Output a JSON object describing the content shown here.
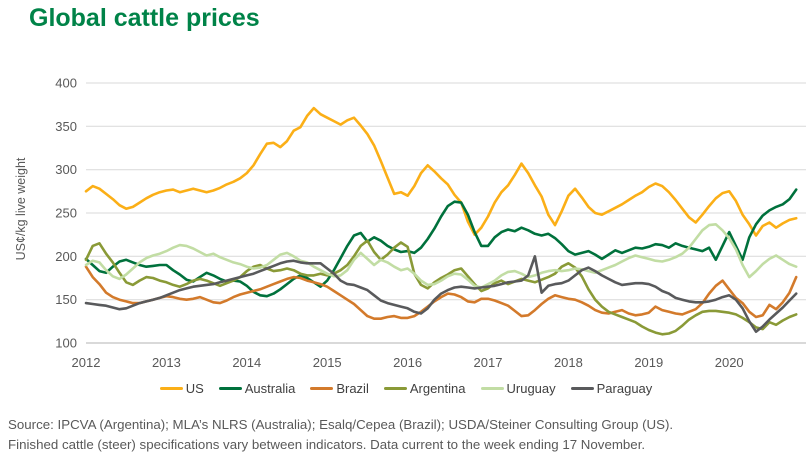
{
  "title": "Global cattle prices",
  "title_color": "#008348",
  "footer": {
    "line1": "Source: IPCVA (Argentina); MLA’s NLRS (Australia); Esalq/Cepea (Brazil); USDA/Steiner Consulting Group (US).",
    "line2": "Finished cattle (steer) specifications vary between indicators. Data current to the week ending 17 November."
  },
  "chart_data": {
    "type": "line",
    "title": "Global cattle prices",
    "xlabel": "",
    "ylabel": "US¢/kg live weight",
    "ylim": [
      100,
      400
    ],
    "yticks": [
      100,
      150,
      200,
      250,
      300,
      350,
      400
    ],
    "xticks": [
      "2012",
      "2013",
      "2014",
      "2015",
      "2016",
      "2017",
      "2018",
      "2019",
      "2020"
    ],
    "grid": "horizontal",
    "legend_position": "bottom",
    "x_start_year": 2012,
    "x_frequency": "monthly",
    "x_end": "2020-11",
    "gridline_color": "#d9d9d9",
    "axis_line_color": "#b3b3b3",
    "tick_label_color": "#595959",
    "series": [
      {
        "name": "US",
        "color": "#fbaf17",
        "values": [
          275,
          281,
          278,
          272,
          266,
          259,
          255,
          257,
          262,
          267,
          271,
          274,
          276,
          277,
          274,
          276,
          278,
          276,
          274,
          276,
          279,
          283,
          286,
          290,
          296,
          305,
          318,
          330,
          331,
          326,
          333,
          345,
          349,
          362,
          371,
          364,
          360,
          356,
          352,
          357,
          360,
          351,
          341,
          328,
          310,
          291,
          272,
          274,
          270,
          281,
          296,
          305,
          298,
          290,
          283,
          271,
          262,
          240,
          225,
          233,
          246,
          262,
          274,
          282,
          294,
          307,
          296,
          282,
          269,
          248,
          236,
          252,
          270,
          278,
          268,
          257,
          250,
          248,
          252,
          256,
          260,
          265,
          270,
          274,
          280,
          284,
          281,
          274,
          265,
          255,
          245,
          239,
          248,
          258,
          267,
          273,
          275,
          264,
          248,
          237,
          224,
          235,
          239,
          233,
          238,
          242,
          244
        ]
      },
      {
        "name": "Australia",
        "color": "#00713c",
        "values": [
          197,
          190,
          183,
          181,
          188,
          194,
          196,
          193,
          190,
          188,
          189,
          190,
          190,
          184,
          179,
          173,
          171,
          176,
          181,
          178,
          174,
          171,
          172,
          171,
          166,
          159,
          155,
          154,
          157,
          162,
          168,
          174,
          178,
          175,
          170,
          165,
          172,
          184,
          198,
          212,
          224,
          227,
          217,
          222,
          218,
          212,
          208,
          205,
          206,
          204,
          210,
          220,
          232,
          246,
          258,
          263,
          262,
          248,
          228,
          212,
          212,
          222,
          228,
          231,
          229,
          233,
          230,
          226,
          224,
          226,
          221,
          214,
          206,
          202,
          204,
          206,
          202,
          197,
          202,
          207,
          204,
          207,
          210,
          209,
          211,
          214,
          213,
          210,
          215,
          212,
          210,
          208,
          206,
          210,
          196,
          212,
          228,
          212,
          196,
          222,
          237,
          247,
          253,
          257,
          260,
          266,
          277
        ]
      },
      {
        "name": "Brazil",
        "color": "#d37a2b",
        "values": [
          188,
          176,
          168,
          158,
          153,
          150,
          148,
          146,
          146,
          148,
          150,
          152,
          154,
          153,
          151,
          150,
          151,
          153,
          150,
          147,
          146,
          149,
          153,
          156,
          158,
          160,
          162,
          165,
          168,
          171,
          174,
          176,
          175,
          172,
          170,
          168,
          165,
          160,
          155,
          150,
          145,
          138,
          131,
          128,
          128,
          130,
          131,
          129,
          129,
          131,
          136,
          142,
          148,
          153,
          157,
          156,
          153,
          148,
          147,
          151,
          151,
          149,
          146,
          143,
          137,
          131,
          132,
          138,
          145,
          151,
          155,
          153,
          151,
          150,
          147,
          143,
          138,
          135,
          134,
          136,
          138,
          134,
          132,
          133,
          135,
          142,
          138,
          136,
          134,
          133,
          136,
          139,
          146,
          157,
          166,
          172,
          162,
          152,
          146,
          136,
          130,
          132,
          144,
          139,
          147,
          158,
          176
        ]
      },
      {
        "name": "Argentina",
        "color": "#8a9a37",
        "values": [
          196,
          212,
          215,
          203,
          193,
          181,
          170,
          167,
          172,
          176,
          175,
          172,
          170,
          167,
          165,
          168,
          172,
          174,
          172,
          169,
          166,
          169,
          172,
          176,
          183,
          188,
          190,
          186,
          183,
          184,
          186,
          184,
          180,
          178,
          178,
          180,
          178,
          180,
          184,
          190,
          200,
          212,
          218,
          205,
          196,
          202,
          210,
          216,
          211,
          180,
          167,
          163,
          170,
          175,
          179,
          184,
          186,
          177,
          168,
          160,
          163,
          169,
          172,
          168,
          171,
          174,
          172,
          170,
          173,
          176,
          180,
          188,
          192,
          187,
          177,
          162,
          150,
          142,
          136,
          133,
          130,
          127,
          124,
          119,
          115,
          112,
          110,
          111,
          114,
          120,
          127,
          132,
          136,
          137,
          137,
          136,
          135,
          133,
          129,
          124,
          118,
          116,
          124,
          121,
          126,
          130,
          133
        ]
      },
      {
        "name": "Uruguay",
        "color": "#c2dda4",
        "values": [
          190,
          195,
          193,
          184,
          177,
          174,
          179,
          186,
          193,
          198,
          201,
          203,
          206,
          210,
          213,
          212,
          209,
          205,
          201,
          203,
          199,
          196,
          193,
          191,
          188,
          186,
          187,
          190,
          196,
          202,
          204,
          200,
          195,
          193,
          188,
          184,
          180,
          177,
          178,
          184,
          196,
          204,
          197,
          190,
          196,
          193,
          188,
          184,
          186,
          180,
          172,
          167,
          168,
          172,
          177,
          180,
          179,
          173,
          166,
          164,
          168,
          172,
          178,
          182,
          183,
          180,
          176,
          178,
          181,
          183,
          184,
          183,
          184,
          186,
          185,
          183,
          181,
          184,
          187,
          190,
          194,
          198,
          201,
          199,
          197,
          195,
          194,
          196,
          199,
          203,
          210,
          220,
          230,
          236,
          237,
          230,
          221,
          208,
          190,
          176,
          183,
          191,
          197,
          201,
          196,
          191,
          188
        ]
      },
      {
        "name": "Paraguay",
        "color": "#595a5c",
        "values": [
          146,
          145,
          144,
          143,
          141,
          139,
          140,
          143,
          146,
          148,
          150,
          152,
          155,
          158,
          161,
          163,
          165,
          166,
          167,
          168,
          170,
          172,
          174,
          176,
          178,
          180,
          183,
          186,
          189,
          192,
          194,
          195,
          193,
          192,
          192,
          192,
          186,
          180,
          172,
          168,
          167,
          164,
          161,
          155,
          149,
          146,
          144,
          142,
          140,
          136,
          134,
          140,
          150,
          157,
          161,
          164,
          165,
          164,
          163,
          164,
          165,
          166,
          168,
          170,
          171,
          172,
          178,
          200,
          158,
          166,
          168,
          169,
          172,
          178,
          184,
          187,
          183,
          178,
          174,
          170,
          167,
          168,
          169,
          169,
          168,
          165,
          160,
          157,
          152,
          150,
          148,
          147,
          147,
          148,
          150,
          153,
          155,
          150,
          140,
          125,
          113,
          119,
          127,
          134,
          141,
          149,
          157
        ]
      }
    ]
  }
}
